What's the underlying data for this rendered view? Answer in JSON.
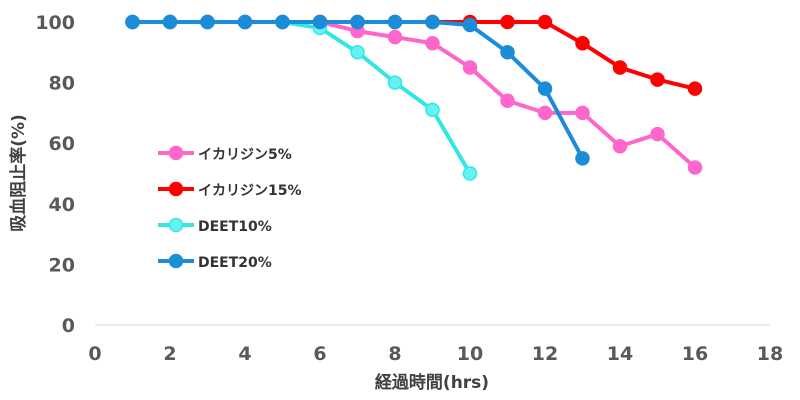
{
  "chart_data": {
    "type": "line",
    "xlabel": "経過時間(hrs)",
    "ylabel": "吸血阻止率(%)",
    "xlim": [
      0,
      18
    ],
    "ylim": [
      0,
      100
    ],
    "x_ticks": [
      "0",
      "2",
      "4",
      "6",
      "8",
      "10",
      "12",
      "14",
      "16",
      "18"
    ],
    "y_ticks": [
      "0",
      "20",
      "40",
      "60",
      "80",
      "100"
    ],
    "grid": false,
    "legend": "left-middle",
    "series": [
      {
        "name": "イカリジン5%",
        "color": "#ff66cc",
        "marker_fill": "#ff66cc",
        "x": [
          1,
          2,
          3,
          4,
          5,
          6,
          7,
          8,
          9,
          10,
          11,
          12,
          13,
          14,
          15,
          16
        ],
        "y": [
          100,
          100,
          100,
          100,
          100,
          100,
          97,
          95,
          93,
          85,
          74,
          70,
          70,
          59,
          63,
          52
        ]
      },
      {
        "name": "イカリジン15%",
        "color": "#ff0000",
        "marker_fill": "#ff0000",
        "x": [
          1,
          2,
          3,
          4,
          5,
          6,
          7,
          8,
          9,
          10,
          11,
          12,
          13,
          14,
          15,
          16
        ],
        "y": [
          100,
          100,
          100,
          100,
          100,
          100,
          100,
          100,
          100,
          100,
          100,
          100,
          93,
          85,
          81,
          78
        ]
      },
      {
        "name": "DEET10%",
        "color": "#33e6e6",
        "marker_fill": "#66f2f2",
        "x": [
          1,
          2,
          3,
          4,
          5,
          6,
          7,
          8,
          9,
          10
        ],
        "y": [
          100,
          100,
          100,
          100,
          100,
          98,
          90,
          80,
          71,
          50
        ]
      },
      {
        "name": "DEET20%",
        "color": "#1a8cd8",
        "marker_fill": "#1a8cd8",
        "x": [
          1,
          2,
          3,
          4,
          5,
          6,
          7,
          8,
          9,
          10,
          11,
          12,
          13
        ],
        "y": [
          100,
          100,
          100,
          100,
          100,
          100,
          100,
          100,
          100,
          99,
          90,
          78,
          55
        ]
      }
    ]
  }
}
